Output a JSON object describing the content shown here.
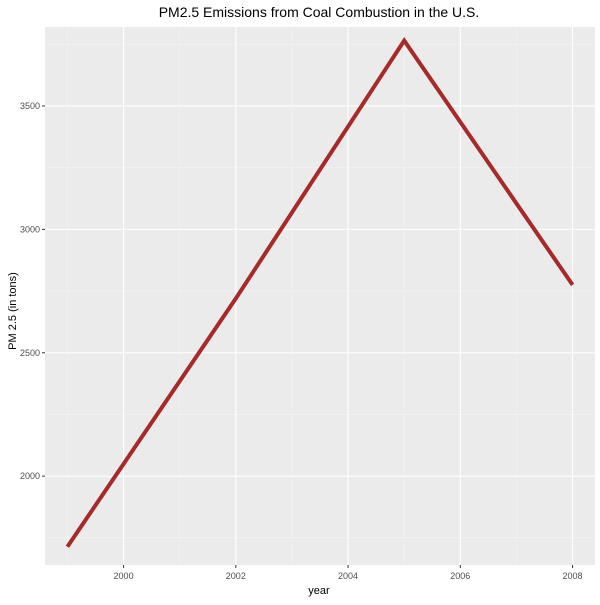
{
  "chart_data": {
    "type": "line",
    "title": "PM2.5 Emissions from Coal Combustion in the U.S.",
    "xlabel": "year",
    "ylabel": "PM 2.5 (in tons)",
    "x": [
      1999,
      2002,
      2005,
      2008
    ],
    "series": [
      {
        "values": [
          1714,
          2720,
          3765,
          2775
        ]
      }
    ],
    "xlim": [
      1998.6,
      2008.4
    ],
    "ylim": [
      1640,
      3820
    ],
    "x_ticks": [
      2000,
      2002,
      2004,
      2006,
      2008
    ],
    "x_tick_labels": [
      "2000",
      "2002",
      "2004",
      "2006",
      "2008"
    ],
    "y_ticks": [
      2000,
      2500,
      3000,
      3500
    ],
    "y_tick_labels": [
      "2000",
      "2500",
      "3000",
      "3500"
    ],
    "grid": true,
    "colors": {
      "panel_background": "#ebebeb",
      "grid_major": "#ffffff",
      "grid_minor": "#f4f4f4",
      "line": "#a52a2a"
    }
  }
}
